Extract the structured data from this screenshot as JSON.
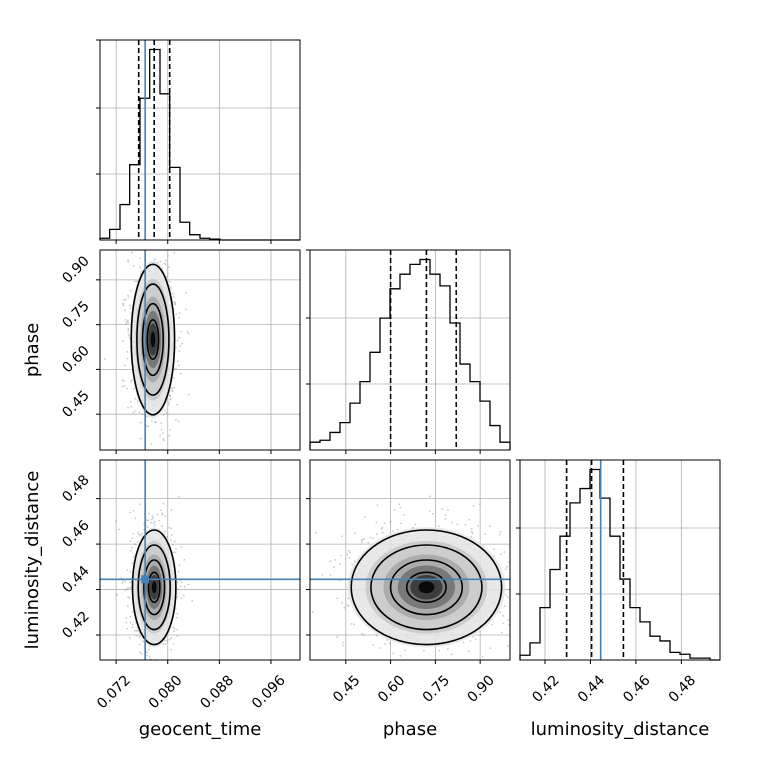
{
  "chart_data": {
    "type": "corner",
    "parameters": [
      {
        "name": "geocent_time",
        "label": "geocent_time",
        "range": [
          0.0695,
          0.1005
        ],
        "ticks": [
          0.072,
          0.08,
          0.088,
          0.096
        ],
        "tick_labels": [
          "0.072",
          "0.080",
          "0.088",
          "0.096"
        ],
        "injection": 0.0765,
        "quantiles": [
          0.0755,
          0.0779,
          0.0803
        ]
      },
      {
        "name": "phase",
        "label": "phase",
        "range": [
          0.33,
          1.0
        ],
        "ticks": [
          0.45,
          0.6,
          0.75,
          0.9
        ],
        "tick_labels": [
          "0.45",
          "0.60",
          "0.75",
          "0.90"
        ],
        "injection": null,
        "quantiles": [
          0.6,
          0.72,
          0.82
        ]
      },
      {
        "name": "luminosity_distance",
        "label": "luminosity_distance",
        "range": [
          0.409,
          0.497
        ],
        "ticks": [
          0.42,
          0.44,
          0.46,
          0.48
        ],
        "tick_labels": [
          "0.42",
          "0.44",
          "0.46",
          "0.48"
        ],
        "injection": 0.4445,
        "quantiles": [
          0.4295,
          0.4405,
          0.4545
        ]
      }
    ],
    "histograms": [
      {
        "parameter": "geocent_time",
        "edges": [
          0.0695,
          0.071,
          0.0726,
          0.0741,
          0.0757,
          0.0772,
          0.0788,
          0.0803,
          0.0819,
          0.0834,
          0.085,
          0.0865,
          0.0881,
          0.0896,
          0.0912,
          0.0927,
          0.0943,
          0.0958,
          0.0974,
          0.0989,
          0.1005
        ],
        "counts": [
          2,
          12,
          40,
          85,
          160,
          215,
          165,
          82,
          20,
          6,
          2,
          1,
          0,
          0,
          0,
          0,
          0,
          0,
          0,
          0
        ]
      },
      {
        "parameter": "phase",
        "edges": [
          0.33,
          0.3635,
          0.397,
          0.4305,
          0.464,
          0.4975,
          0.531,
          0.5645,
          0.598,
          0.6315,
          0.665,
          0.6985,
          0.732,
          0.7655,
          0.799,
          0.8325,
          0.866,
          0.8995,
          0.933,
          0.9665,
          1.0
        ],
        "counts": [
          8,
          10,
          18,
          28,
          48,
          70,
          100,
          135,
          165,
          180,
          190,
          195,
          180,
          168,
          130,
          88,
          70,
          50,
          25,
          8
        ]
      },
      {
        "parameter": "luminosity_distance",
        "edges": [
          0.409,
          0.4134,
          0.4178,
          0.4222,
          0.4266,
          0.431,
          0.4354,
          0.4398,
          0.4442,
          0.4486,
          0.453,
          0.4574,
          0.4618,
          0.4662,
          0.4706,
          0.475,
          0.4794,
          0.4838,
          0.4882,
          0.4926,
          0.497
        ],
        "counts": [
          5,
          18,
          55,
          95,
          130,
          165,
          180,
          200,
          170,
          130,
          85,
          55,
          40,
          25,
          20,
          8,
          6,
          2,
          2,
          0
        ]
      }
    ],
    "density_2d": [
      {
        "x": "geocent_time",
        "y": "phase",
        "center": [
          0.0777,
          0.7
        ],
        "spread": [
          0.0016,
          0.12
        ]
      },
      {
        "x": "geocent_time",
        "y": "luminosity_distance",
        "center": [
          0.0779,
          0.441
        ],
        "spread": [
          0.0016,
          0.012
        ]
      },
      {
        "x": "phase",
        "y": "luminosity_distance",
        "center": [
          0.72,
          0.441
        ],
        "spread": [
          0.12,
          0.012
        ]
      }
    ],
    "injection_color": "#4682b4",
    "grid": true,
    "legend": "none"
  }
}
